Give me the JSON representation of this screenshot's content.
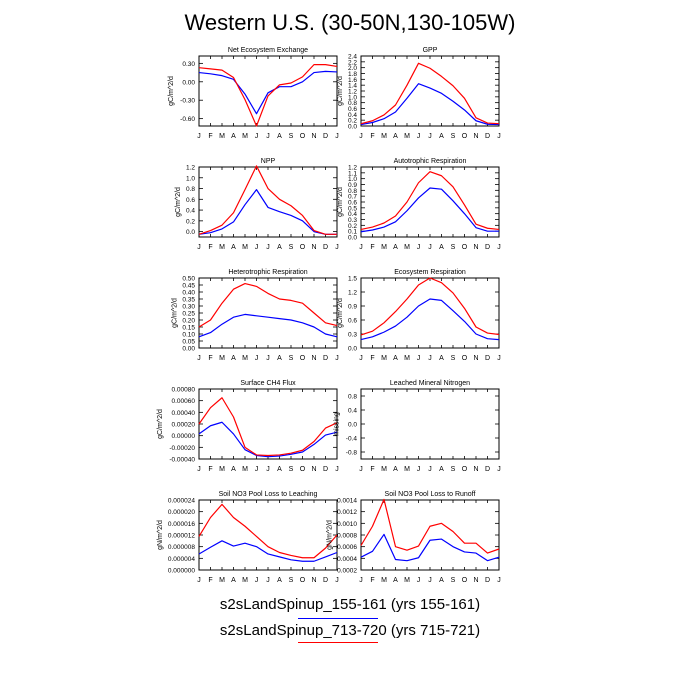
{
  "title": "Western U.S. (30-50N,130-105W)",
  "legend": {
    "items": [
      {
        "label": "s2sLandSpinup_155-161 (yrs 155-161)",
        "color": "#0000ff"
      },
      {
        "label": "s2sLandSpinup_713-720 (yrs 715-721)",
        "color": "#ff0000"
      }
    ]
  },
  "chart_data": [
    {
      "type": "line",
      "title": "Net Ecosystem Exchange",
      "ylabel": "gC/m^2/d",
      "categories": [
        "J",
        "F",
        "M",
        "A",
        "M",
        "J",
        "J",
        "A",
        "S",
        "O",
        "N",
        "D",
        "J"
      ],
      "ylim": [
        -0.72,
        0.42
      ],
      "yticks": [
        0.3,
        0.0,
        -0.3,
        -0.6
      ],
      "ytick_labels": [
        "0.30",
        "0.00",
        "-0.30",
        "-0.60"
      ],
      "series": [
        {
          "color": "#0000ff",
          "values": [
            0.15,
            0.13,
            0.1,
            0.04,
            -0.2,
            -0.52,
            -0.18,
            -0.08,
            -0.08,
            0.0,
            0.15,
            0.17,
            0.16
          ]
        },
        {
          "color": "#ff0000",
          "values": [
            0.23,
            0.21,
            0.19,
            0.07,
            -0.29,
            -0.72,
            -0.23,
            -0.05,
            -0.02,
            0.08,
            0.28,
            0.28,
            0.25
          ]
        }
      ]
    },
    {
      "type": "line",
      "title": "GPP",
      "ylabel": "gC/m^2/d",
      "categories": [
        "J",
        "F",
        "M",
        "A",
        "M",
        "J",
        "J",
        "A",
        "S",
        "O",
        "N",
        "D",
        "J"
      ],
      "ylim": [
        0,
        2.4
      ],
      "yticks": [
        0.0,
        0.2,
        0.4,
        0.6,
        0.8,
        1.0,
        1.2,
        1.4,
        1.6,
        1.8,
        2.0,
        2.2,
        2.4
      ],
      "ytick_labels": [
        "0.0",
        "0.2",
        "0.4",
        "0.6",
        "0.8",
        "1.0",
        "1.2",
        "1.4",
        "1.6",
        "1.8",
        "2.0",
        "2.2",
        "2.4"
      ],
      "series": [
        {
          "color": "#0000ff",
          "values": [
            0.05,
            0.12,
            0.25,
            0.48,
            0.95,
            1.45,
            1.3,
            1.12,
            0.85,
            0.55,
            0.18,
            0.06,
            0.05
          ]
        },
        {
          "color": "#ff0000",
          "values": [
            0.08,
            0.18,
            0.38,
            0.72,
            1.4,
            2.15,
            1.98,
            1.7,
            1.38,
            0.95,
            0.28,
            0.1,
            0.08
          ]
        }
      ]
    },
    {
      "type": "line",
      "title": "NPP",
      "ylabel": "gC/m^2/d",
      "categories": [
        "J",
        "F",
        "M",
        "A",
        "M",
        "J",
        "J",
        "A",
        "S",
        "O",
        "N",
        "D",
        "J"
      ],
      "ylim": [
        -0.1,
        1.2
      ],
      "yticks": [
        0.0,
        0.2,
        0.4,
        0.6,
        0.8,
        1.0,
        1.2
      ],
      "ytick_labels": [
        "0.0",
        "0.2",
        "0.4",
        "0.6",
        "0.8",
        "1.0",
        "1.2"
      ],
      "series": [
        {
          "color": "#0000ff",
          "values": [
            -0.05,
            -0.02,
            0.05,
            0.18,
            0.5,
            0.78,
            0.45,
            0.37,
            0.3,
            0.2,
            0.0,
            -0.05,
            -0.05
          ]
        },
        {
          "color": "#ff0000",
          "values": [
            -0.05,
            0.02,
            0.12,
            0.35,
            0.78,
            1.22,
            0.8,
            0.6,
            0.48,
            0.3,
            0.02,
            -0.05,
            -0.05
          ]
        }
      ]
    },
    {
      "type": "line",
      "title": "Autotrophic Respiration",
      "ylabel": "gC/m^2/d",
      "categories": [
        "J",
        "F",
        "M",
        "A",
        "M",
        "J",
        "J",
        "A",
        "S",
        "O",
        "N",
        "D",
        "J"
      ],
      "ylim": [
        0,
        1.2
      ],
      "yticks": [
        0.0,
        0.1,
        0.2,
        0.3,
        0.4,
        0.5,
        0.6,
        0.7,
        0.8,
        0.9,
        1.0,
        1.1,
        1.2
      ],
      "ytick_labels": [
        "0.0",
        "0.1",
        "0.2",
        "0.3",
        "0.4",
        "0.5",
        "0.6",
        "0.7",
        "0.8",
        "0.9",
        "1.0",
        "1.1",
        "1.2"
      ],
      "series": [
        {
          "color": "#0000ff",
          "values": [
            0.09,
            0.12,
            0.17,
            0.26,
            0.45,
            0.67,
            0.84,
            0.82,
            0.62,
            0.4,
            0.16,
            0.1,
            0.1
          ]
        },
        {
          "color": "#ff0000",
          "values": [
            0.13,
            0.17,
            0.24,
            0.36,
            0.6,
            0.93,
            1.12,
            1.05,
            0.86,
            0.55,
            0.22,
            0.15,
            0.13
          ]
        }
      ]
    },
    {
      "type": "line",
      "title": "Heterotrophic Respiration",
      "ylabel": "gC/m^2/d",
      "categories": [
        "J",
        "F",
        "M",
        "A",
        "M",
        "J",
        "J",
        "A",
        "S",
        "O",
        "N",
        "D",
        "J"
      ],
      "ylim": [
        0,
        0.5
      ],
      "yticks": [
        0.0,
        0.05,
        0.1,
        0.15,
        0.2,
        0.25,
        0.3,
        0.35,
        0.4,
        0.45,
        0.5
      ],
      "ytick_labels": [
        "0.00",
        "0.05",
        "0.10",
        "0.15",
        "0.20",
        "0.25",
        "0.30",
        "0.35",
        "0.40",
        "0.45",
        "0.50"
      ],
      "series": [
        {
          "color": "#0000ff",
          "values": [
            0.08,
            0.11,
            0.17,
            0.22,
            0.24,
            0.23,
            0.22,
            0.21,
            0.2,
            0.18,
            0.15,
            0.1,
            0.08
          ]
        },
        {
          "color": "#ff0000",
          "values": [
            0.15,
            0.2,
            0.32,
            0.42,
            0.46,
            0.44,
            0.39,
            0.35,
            0.34,
            0.32,
            0.25,
            0.18,
            0.16
          ]
        }
      ]
    },
    {
      "type": "line",
      "title": "Ecosystem Respiration",
      "ylabel": "gC/m^2/d",
      "categories": [
        "J",
        "F",
        "M",
        "A",
        "M",
        "J",
        "J",
        "A",
        "S",
        "O",
        "N",
        "D",
        "J"
      ],
      "ylim": [
        0,
        1.5
      ],
      "yticks": [
        0.0,
        0.3,
        0.6,
        0.9,
        1.2,
        1.5
      ],
      "ytick_labels": [
        "0.0",
        "0.3",
        "0.6",
        "0.9",
        "1.2",
        "1.5"
      ],
      "series": [
        {
          "color": "#0000ff",
          "values": [
            0.18,
            0.24,
            0.34,
            0.47,
            0.66,
            0.9,
            1.05,
            1.02,
            0.8,
            0.57,
            0.3,
            0.2,
            0.18
          ]
        },
        {
          "color": "#ff0000",
          "values": [
            0.28,
            0.36,
            0.54,
            0.78,
            1.05,
            1.35,
            1.5,
            1.4,
            1.18,
            0.85,
            0.45,
            0.32,
            0.29
          ]
        }
      ]
    },
    {
      "type": "line",
      "title": "Surface CH4 Flux",
      "ylabel": "gC/m^2/d",
      "categories": [
        "J",
        "F",
        "M",
        "A",
        "M",
        "J",
        "J",
        "A",
        "S",
        "O",
        "N",
        "D",
        "J"
      ],
      "ylim": [
        -0.0004,
        0.0008
      ],
      "yticks": [
        -0.0004,
        -0.0002,
        0.0,
        0.0002,
        0.0004,
        0.0006,
        0.0008
      ],
      "ytick_labels": [
        "-0.00040",
        "-0.00020",
        "0.00000",
        "0.00020",
        "0.00040",
        "0.00060",
        "0.00080"
      ],
      "series": [
        {
          "color": "#0000ff",
          "values": [
            3e-05,
            0.00017,
            0.00023,
            3e-05,
            -0.00024,
            -0.00034,
            -0.00036,
            -0.00035,
            -0.00032,
            -0.00028,
            -0.00015,
            1e-05,
            6e-05
          ]
        },
        {
          "color": "#ff0000",
          "values": [
            0.0002,
            0.00048,
            0.00065,
            0.00032,
            -0.0002,
            -0.00033,
            -0.00034,
            -0.00033,
            -0.0003,
            -0.00025,
            -0.0001,
            0.00013,
            0.00022
          ]
        }
      ]
    },
    {
      "type": "line",
      "title": "Leached Mineral Nitrogen",
      "ylabel": "missing",
      "categories": [
        "J",
        "F",
        "M",
        "A",
        "M",
        "J",
        "J",
        "A",
        "S",
        "O",
        "N",
        "D",
        "J"
      ],
      "ylim": [
        -1.0,
        1.0
      ],
      "yticks": [
        -0.8,
        -0.4,
        0.0,
        0.4,
        0.8
      ],
      "ytick_labels": [
        "-0.8",
        "-0.4",
        "0.0",
        "0.4",
        "0.8"
      ],
      "series": []
    },
    {
      "type": "line",
      "title": "Soil NO3 Pool Loss to Leaching",
      "ylabel": "gN/m^2/d",
      "categories": [
        "J",
        "F",
        "M",
        "A",
        "M",
        "J",
        "J",
        "A",
        "S",
        "O",
        "N",
        "D",
        "J"
      ],
      "ylim": [
        0,
        2.4e-05
      ],
      "yticks": [
        0.0,
        4e-06,
        8e-06,
        1.2e-05,
        1.6e-05,
        2e-05,
        2.4e-05
      ],
      "ytick_labels": [
        "0.000000",
        "0.000004",
        "0.000008",
        "0.000012",
        "0.000016",
        "0.000020",
        "0.000024"
      ],
      "series": [
        {
          "color": "#0000ff",
          "values": [
            5.5e-06,
            7.8e-06,
            1e-05,
            8.2e-06,
            9.2e-06,
            8e-06,
            5.5e-06,
            4.5e-06,
            3.5e-06,
            3e-06,
            3e-06,
            4.5e-06,
            6e-06
          ]
        },
        {
          "color": "#ff0000",
          "values": [
            1.15e-05,
            1.8e-05,
            2.25e-05,
            1.8e-05,
            1.5e-05,
            1.15e-05,
            8e-06,
            6e-06,
            5e-06,
            4.2e-06,
            4.2e-06,
            7.5e-06,
            1.2e-05
          ]
        }
      ]
    },
    {
      "type": "line",
      "title": "Soil NO3 Pool Loss to Runoff",
      "ylabel": "gN/m^2/d",
      "categories": [
        "J",
        "F",
        "M",
        "A",
        "M",
        "J",
        "J",
        "A",
        "S",
        "O",
        "N",
        "D",
        "J"
      ],
      "ylim": [
        0.0002,
        0.0014
      ],
      "yticks": [
        0.0002,
        0.0004,
        0.0006,
        0.0008,
        0.001,
        0.0012,
        0.0014
      ],
      "ytick_labels": [
        "0.0002",
        "0.0004",
        "0.0006",
        "0.0008",
        "0.0010",
        "0.0012",
        "0.0014"
      ],
      "series": [
        {
          "color": "#0000ff",
          "values": [
            0.00042,
            0.00052,
            0.00081,
            0.00038,
            0.00036,
            0.00041,
            0.00071,
            0.00073,
            0.0006,
            0.00051,
            0.00049,
            0.00036,
            0.00042
          ]
        },
        {
          "color": "#ff0000",
          "values": [
            0.00062,
            0.00095,
            0.00141,
            0.0006,
            0.00054,
            0.00061,
            0.00095,
            0.001,
            0.00086,
            0.00066,
            0.00066,
            0.00049,
            0.00056
          ]
        }
      ]
    }
  ]
}
